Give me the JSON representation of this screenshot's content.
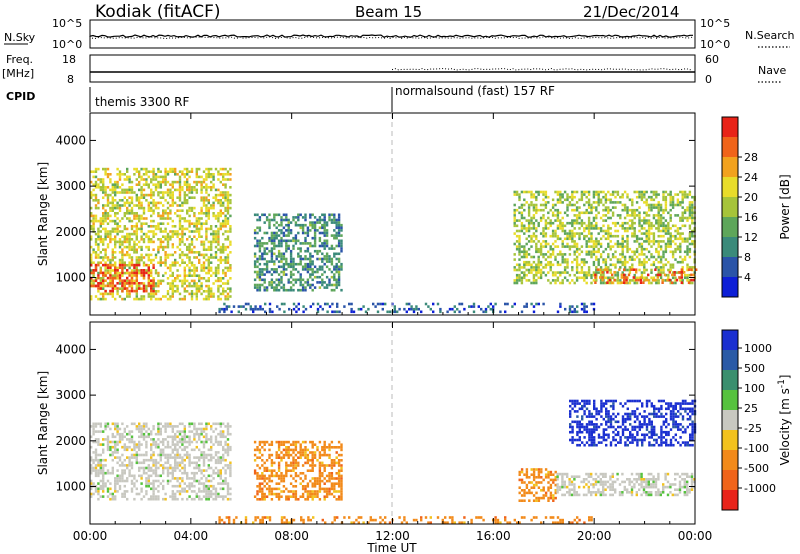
{
  "header": {
    "station": "Kodiak (fitACF)",
    "beam": "Beam 15",
    "date": "21/Dec/2014"
  },
  "panels": {
    "nsky": {
      "left_label": "N.Sky",
      "right_label": "N.Search",
      "left_ticks": [
        "10^5",
        "10^0"
      ],
      "right_ticks": [
        "10^5",
        "10^0"
      ]
    },
    "freq": {
      "left_label_1": "Freq.",
      "left_label_2": "[MHz]",
      "right_label": "Nave",
      "left_ticks": [
        "18",
        "8"
      ],
      "right_ticks": [
        "60",
        "0"
      ]
    },
    "cpid": {
      "label": "CPID",
      "modes": [
        {
          "name": "themis 3300 RF",
          "start_hour": 0
        },
        {
          "name": "normalsound (fast) 157 RF",
          "start_hour": 12
        }
      ]
    }
  },
  "axes": {
    "xlabel": "Time UT",
    "x_ticks": [
      "00:00",
      "04:00",
      "08:00",
      "12:00",
      "16:00",
      "20:00",
      "00:00"
    ],
    "ylabel": "Slant Range [km]",
    "y_ticks": [
      "1000",
      "2000",
      "3000",
      "4000"
    ]
  },
  "colorbars": {
    "power": {
      "label": "Power [dB]",
      "ticks": [
        "4",
        "8",
        "12",
        "16",
        "20",
        "24",
        "28"
      ],
      "colors": [
        "#0d1fd6",
        "#2a54a8",
        "#3a8a7a",
        "#5ea65a",
        "#a6c43a",
        "#e8dc2a",
        "#f2a21e",
        "#f0641a",
        "#e82318"
      ]
    },
    "velocity": {
      "label": "Velocity [m s^-1]",
      "ticks": [
        "1000",
        "500",
        "100",
        "25",
        "-25",
        "-100",
        "-500",
        "-1000"
      ],
      "colors": [
        "#1a2fd0",
        "#2a5aa6",
        "#3a8f6e",
        "#56c23e",
        "#c8c8c0",
        "#f2c21e",
        "#f28a1a",
        "#f0641a",
        "#e8231a"
      ]
    }
  },
  "chart_data": [
    {
      "type": "heatmap",
      "title": "Power",
      "xlabel": "Time UT",
      "ylabel": "Slant Range [km]",
      "xlim": [
        0,
        24
      ],
      "ylim": [
        180,
        4600
      ],
      "colorbar": "Power [dB]",
      "regions": [
        {
          "t0": 0.0,
          "t1": 5.6,
          "r0": 500,
          "r1": 3400,
          "value_db": 18
        },
        {
          "t0": 0.0,
          "t1": 2.5,
          "r0": 700,
          "r1": 1300,
          "value_db": 28
        },
        {
          "t0": 6.5,
          "t1": 10.0,
          "r0": 700,
          "r1": 2400,
          "value_db": 10
        },
        {
          "t0": 16.8,
          "t1": 24.0,
          "r0": 900,
          "r1": 2900,
          "value_db": 16
        },
        {
          "t0": 20.0,
          "t1": 24.0,
          "r0": 900,
          "r1": 1200,
          "value_db": 26
        },
        {
          "t0": 5.0,
          "t1": 20.0,
          "r0": 250,
          "r1": 450,
          "value_db": 6
        }
      ]
    },
    {
      "type": "heatmap",
      "title": "Velocity",
      "xlabel": "Time UT",
      "ylabel": "Slant Range [km]",
      "xlim": [
        0,
        24
      ],
      "ylim": [
        180,
        4600
      ],
      "colorbar": "Velocity [m s^-1]",
      "regions": [
        {
          "t0": 0.0,
          "t1": 5.6,
          "r0": 700,
          "r1": 2400,
          "value_ms": 0
        },
        {
          "t0": 6.5,
          "t1": 10.0,
          "r0": 700,
          "r1": 2000,
          "value_ms": -300
        },
        {
          "t0": 17.0,
          "t1": 18.5,
          "r0": 700,
          "r1": 1400,
          "value_ms": -300
        },
        {
          "t0": 18.5,
          "t1": 24.0,
          "r0": 800,
          "r1": 1300,
          "value_ms": 0
        },
        {
          "t0": 19.0,
          "t1": 24.0,
          "r0": 1900,
          "r1": 2900,
          "value_ms": 800
        },
        {
          "t0": 5.0,
          "t1": 20.0,
          "r0": 180,
          "r1": 350,
          "value_ms": -100
        }
      ]
    }
  ]
}
